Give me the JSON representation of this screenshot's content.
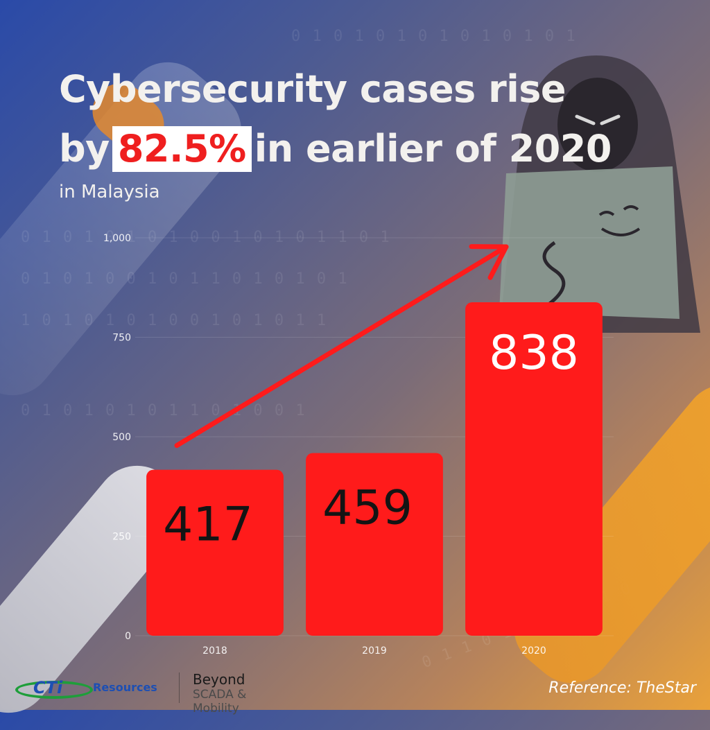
{
  "headline": {
    "line1": "Cybersecurity cases rise",
    "line2_prefix": "by",
    "highlight": "82.5%",
    "line2_suffix": "in earlier of 2020"
  },
  "subtitle": "in Malaysia",
  "colors": {
    "bar": "#ff1b1b",
    "arrow": "#ff1b1b",
    "highlight_text": "#ef1f1f"
  },
  "chart_data": {
    "type": "bar",
    "categories": [
      "2018",
      "2019",
      "2020"
    ],
    "values": [
      417,
      459,
      838
    ],
    "value_labels": [
      "417",
      "459",
      "838"
    ],
    "ylim": [
      0,
      1000
    ],
    "yticks": [
      0,
      250,
      500,
      750,
      1000
    ],
    "ytick_labels": [
      "0",
      "250",
      "500",
      "750",
      "1,000"
    ],
    "grid": true,
    "trend_arrow": true
  },
  "footer": {
    "reference": "Reference: TheStar",
    "logo": {
      "cti": "CTi",
      "resources": "Resources",
      "beyond": "Beyond",
      "scada": "SCADA & Mobility"
    }
  },
  "icons": [
    "hacker-illustration",
    "binary-code-background",
    "trend-arrow-icon"
  ]
}
